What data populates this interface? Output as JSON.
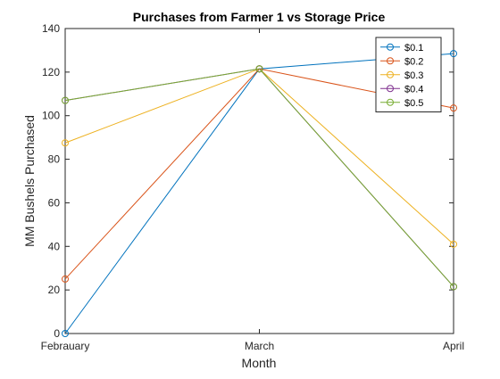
{
  "chart_data": {
    "type": "line",
    "title": "Purchases from Farmer 1 vs Storage Price",
    "xlabel": "Month",
    "ylabel": "MM Bushels Purchased",
    "categories": [
      "Febrauary",
      "March",
      "April"
    ],
    "ylim": [
      0,
      140
    ],
    "yticks": [
      0,
      20,
      40,
      60,
      80,
      100,
      120,
      140
    ],
    "grid": false,
    "legend_position": "top-right",
    "marker": "open-circle",
    "series": [
      {
        "name": "$0.1",
        "color": "#0072BD",
        "values": [
          0,
          121.5,
          128.5
        ]
      },
      {
        "name": "$0.2",
        "color": "#D95319",
        "values": [
          25,
          121.5,
          103.5
        ]
      },
      {
        "name": "$0.3",
        "color": "#EDB120",
        "values": [
          87.5,
          121.5,
          41
        ]
      },
      {
        "name": "$0.4",
        "color": "#7E2F8E",
        "values": [
          107,
          121.5,
          21.5
        ]
      },
      {
        "name": "$0.5",
        "color": "#77AC30",
        "values": [
          107,
          121.5,
          21.5
        ]
      }
    ]
  }
}
